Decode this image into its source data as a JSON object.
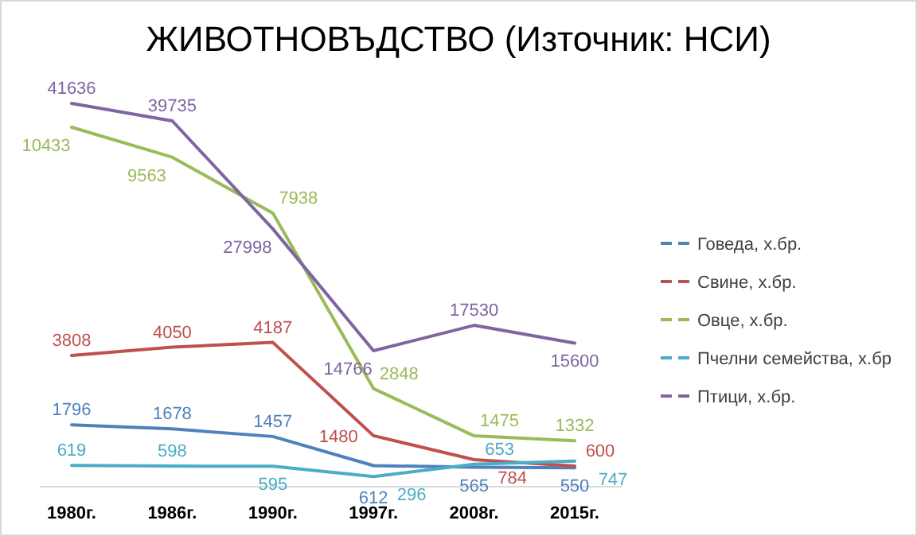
{
  "chart_data": {
    "type": "line",
    "title": "ЖИВОТНОВЪДСТВО (Източник: НСИ)",
    "categories": [
      "1980г.",
      "1986г.",
      "1990г.",
      "1997г.",
      "2008г.",
      "2015г."
    ],
    "series": [
      {
        "name": "Говеда, х.бр.",
        "color": "#4f81bd",
        "values": [
          1796,
          1678,
          1457,
          612,
          565,
          550
        ]
      },
      {
        "name": "Свине, х.бр.",
        "color": "#c0504d",
        "values": [
          3808,
          4050,
          4187,
          1480,
          784,
          600
        ]
      },
      {
        "name": "Овце, х.бр.",
        "color": "#9bbb59",
        "values": [
          10433,
          9563,
          7938,
          2848,
          1475,
          1332
        ]
      },
      {
        "name": "Пчелни семейства, х.бр",
        "color": "#4bacc6",
        "values": [
          619,
          598,
          595,
          296,
          653,
          747
        ]
      },
      {
        "name": "Птици, х.бр.",
        "color": "#8064a2",
        "axis": "y2",
        "values": [
          41636,
          39735,
          27998,
          14766,
          17530,
          15600
        ]
      }
    ],
    "tick_labels": "x",
    "data_labels": true,
    "legend": "right",
    "marker": "none",
    "line_style": "solid"
  }
}
